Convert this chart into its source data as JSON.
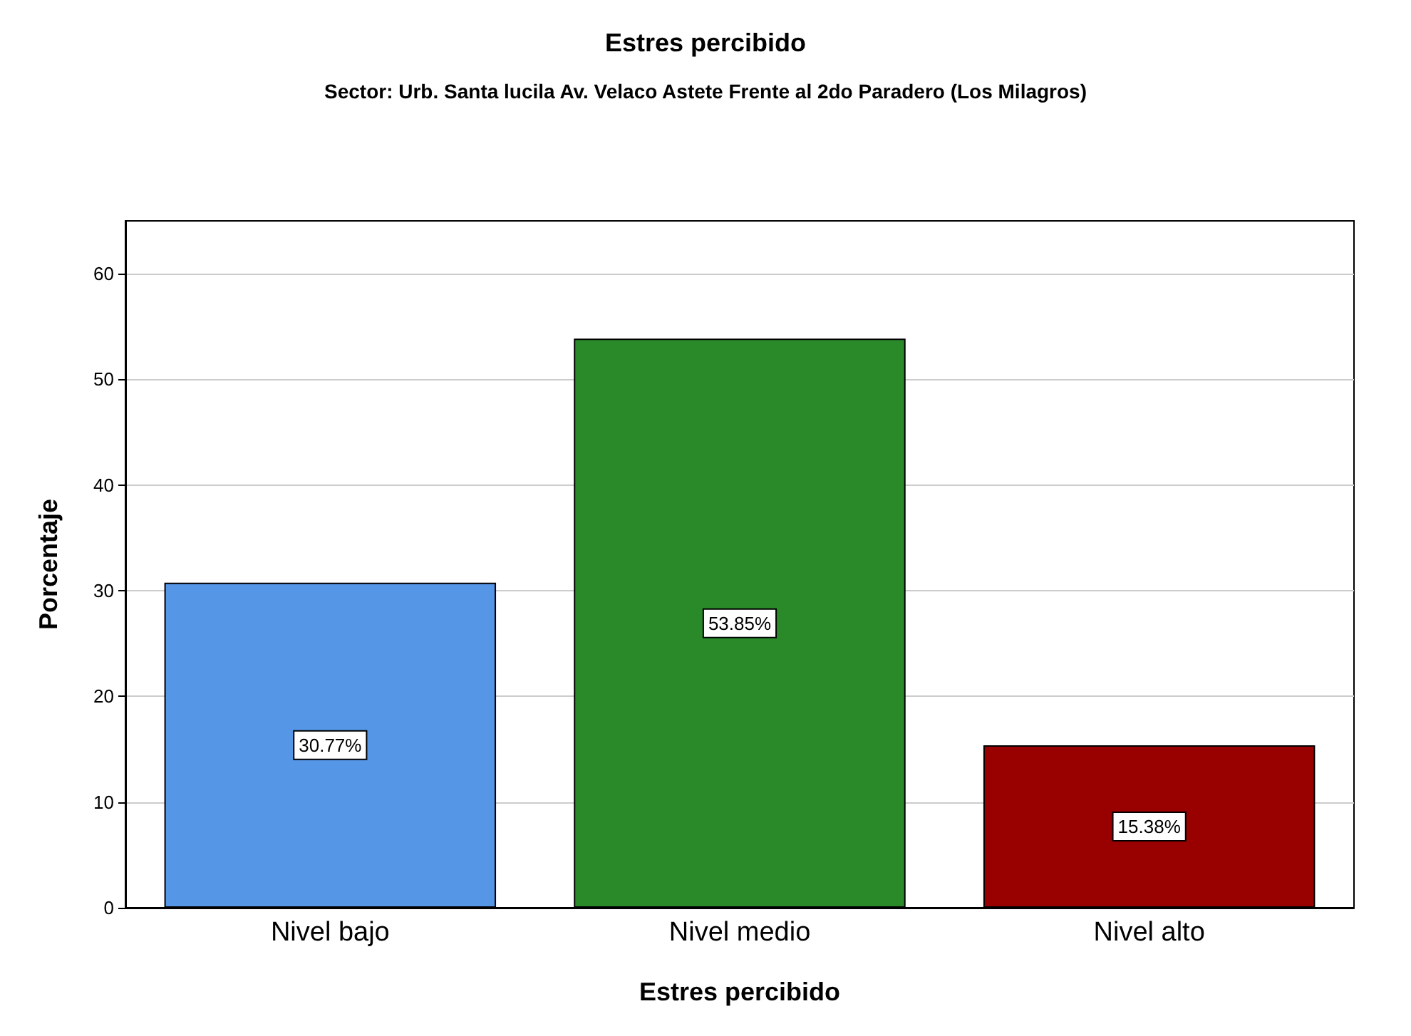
{
  "chart_data": {
    "type": "bar",
    "title": "Estres percibido",
    "subtitle": "Sector: Urb. Santa lucila Av. Velaco Astete Frente al 2do Paradero (Los Milagros)",
    "xlabel": "Estres percibido",
    "ylabel": "Porcentaje",
    "categories": [
      "Nivel bajo",
      "Nivel medio",
      "Nivel alto"
    ],
    "values": [
      30.77,
      53.85,
      15.38
    ],
    "colors": [
      "#5596e6",
      "#2a8a2a",
      "#990000"
    ],
    "value_labels": [
      "30.77%",
      "53.85%",
      "15.38%"
    ],
    "ylim": [
      0,
      65
    ],
    "yticks": [
      0,
      10,
      20,
      30,
      40,
      50,
      60
    ],
    "grid": "y"
  }
}
